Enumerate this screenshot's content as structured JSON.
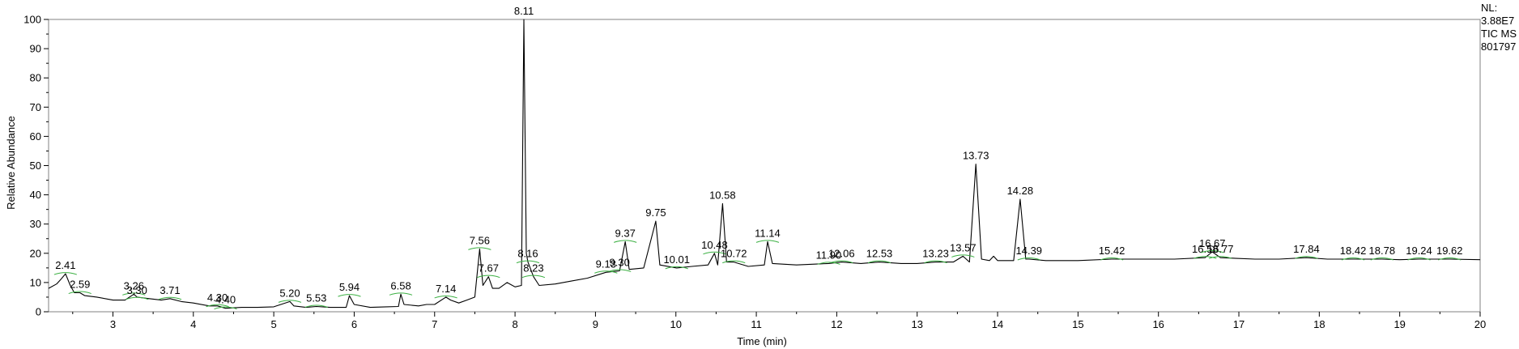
{
  "chart_data": {
    "type": "line",
    "xlabel": "Time (min)",
    "ylabel": "Relative Abundance",
    "xlim": [
      2.2,
      20
    ],
    "ylim": [
      0,
      100
    ],
    "xticks": [
      "3",
      "4",
      "5",
      "6",
      "7",
      "8",
      "9",
      "10",
      "11",
      "12",
      "13",
      "14",
      "15",
      "16",
      "17",
      "18",
      "19",
      "20"
    ],
    "yticks": [
      "0",
      "10",
      "20",
      "30",
      "40",
      "50",
      "60",
      "70",
      "80",
      "90",
      "100"
    ],
    "grid": false,
    "legend": "none",
    "line_color": "#000000",
    "baseline_marker_color": "#3cb043",
    "side_info": [
      "NL:",
      "3.88E7",
      "TIC  MS",
      "801797"
    ],
    "peak_labels": [
      {
        "label": "2.41",
        "x": 2.41,
        "y": 13
      },
      {
        "label": "2.59",
        "x": 2.59,
        "y": 6.5
      },
      {
        "label": "3.26",
        "x": 3.26,
        "y": 6
      },
      {
        "label": "3.30",
        "x": 3.3,
        "y": 4.5
      },
      {
        "label": "3.71",
        "x": 3.71,
        "y": 4.5
      },
      {
        "label": "4.30",
        "x": 4.3,
        "y": 2
      },
      {
        "label": "4.40",
        "x": 4.4,
        "y": 1.2
      },
      {
        "label": "5.20",
        "x": 5.2,
        "y": 3.5
      },
      {
        "label": "5.53",
        "x": 5.53,
        "y": 1.8
      },
      {
        "label": "5.94",
        "x": 5.94,
        "y": 5.5
      },
      {
        "label": "6.58",
        "x": 6.58,
        "y": 6
      },
      {
        "label": "7.14",
        "x": 7.14,
        "y": 5
      },
      {
        "label": "7.56",
        "x": 7.56,
        "y": 21.5
      },
      {
        "label": "7.67",
        "x": 7.67,
        "y": 12
      },
      {
        "label": "8.11",
        "x": 8.11,
        "y": 100
      },
      {
        "label": "8.16",
        "x": 8.16,
        "y": 17
      },
      {
        "label": "8.23",
        "x": 8.23,
        "y": 12
      },
      {
        "label": "9.13",
        "x": 9.13,
        "y": 13.5
      },
      {
        "label": "9.30",
        "x": 9.3,
        "y": 14
      },
      {
        "label": "9.37",
        "x": 9.37,
        "y": 24
      },
      {
        "label": "9.75",
        "x": 9.75,
        "y": 31
      },
      {
        "label": "10.01",
        "x": 10.01,
        "y": 15
      },
      {
        "label": "10.48",
        "x": 10.48,
        "y": 20
      },
      {
        "label": "10.58",
        "x": 10.58,
        "y": 37
      },
      {
        "label": "10.72",
        "x": 10.72,
        "y": 17
      },
      {
        "label": "11.14",
        "x": 11.14,
        "y": 24
      },
      {
        "label": "11.90",
        "x": 11.9,
        "y": 16.5
      },
      {
        "label": "12.06",
        "x": 12.06,
        "y": 17
      },
      {
        "label": "12.53",
        "x": 12.53,
        "y": 17
      },
      {
        "label": "13.23",
        "x": 13.23,
        "y": 17
      },
      {
        "label": "13.57",
        "x": 13.57,
        "y": 19
      },
      {
        "label": "13.73",
        "x": 13.73,
        "y": 50.5
      },
      {
        "label": "14.28",
        "x": 14.28,
        "y": 38.5
      },
      {
        "label": "14.39",
        "x": 14.39,
        "y": 18
      },
      {
        "label": "15.42",
        "x": 15.42,
        "y": 18
      },
      {
        "label": "16.58",
        "x": 16.58,
        "y": 18.5
      },
      {
        "label": "16.67",
        "x": 16.67,
        "y": 20.5
      },
      {
        "label": "16.77",
        "x": 16.77,
        "y": 18.5
      },
      {
        "label": "17.84",
        "x": 17.84,
        "y": 18.5
      },
      {
        "label": "18.42",
        "x": 18.42,
        "y": 18
      },
      {
        "label": "18.78",
        "x": 18.78,
        "y": 18
      },
      {
        "label": "19.24",
        "x": 19.24,
        "y": 18
      },
      {
        "label": "19.62",
        "x": 19.62,
        "y": 18
      }
    ],
    "baseline_trace": [
      [
        2.2,
        8
      ],
      [
        2.3,
        9.5
      ],
      [
        2.35,
        11
      ],
      [
        2.41,
        13
      ],
      [
        2.47,
        9
      ],
      [
        2.52,
        6.5
      ],
      [
        2.59,
        6.5
      ],
      [
        2.65,
        5.5
      ],
      [
        2.8,
        5
      ],
      [
        3.0,
        4
      ],
      [
        3.15,
        4
      ],
      [
        3.26,
        6
      ],
      [
        3.3,
        5
      ],
      [
        3.45,
        4.5
      ],
      [
        3.6,
        4
      ],
      [
        3.71,
        4.5
      ],
      [
        3.85,
        3.5
      ],
      [
        4.0,
        3
      ],
      [
        4.2,
        2
      ],
      [
        4.3,
        2
      ],
      [
        4.4,
        1.2
      ],
      [
        4.6,
        1.5
      ],
      [
        4.8,
        1.5
      ],
      [
        5.0,
        1.7
      ],
      [
        5.2,
        3.5
      ],
      [
        5.25,
        2
      ],
      [
        5.4,
        1.5
      ],
      [
        5.53,
        1.8
      ],
      [
        5.7,
        1.5
      ],
      [
        5.9,
        1.5
      ],
      [
        5.94,
        5.5
      ],
      [
        6.0,
        2.5
      ],
      [
        6.2,
        1.5
      ],
      [
        6.4,
        1.7
      ],
      [
        6.55,
        1.8
      ],
      [
        6.58,
        6
      ],
      [
        6.62,
        2.5
      ],
      [
        6.8,
        2
      ],
      [
        6.9,
        2.5
      ],
      [
        7.0,
        2.5
      ],
      [
        7.14,
        5
      ],
      [
        7.2,
        4
      ],
      [
        7.3,
        3
      ],
      [
        7.4,
        4
      ],
      [
        7.5,
        5
      ],
      [
        7.56,
        21.5
      ],
      [
        7.6,
        9
      ],
      [
        7.67,
        12
      ],
      [
        7.72,
        8
      ],
      [
        7.8,
        8
      ],
      [
        7.9,
        10
      ],
      [
        8.0,
        8.5
      ],
      [
        8.08,
        9
      ],
      [
        8.11,
        100
      ],
      [
        8.14,
        20
      ],
      [
        8.16,
        17
      ],
      [
        8.23,
        12
      ],
      [
        8.3,
        9
      ],
      [
        8.5,
        9.5
      ],
      [
        8.7,
        10.5
      ],
      [
        8.9,
        11.5
      ],
      [
        9.13,
        13.5
      ],
      [
        9.3,
        14
      ],
      [
        9.37,
        24
      ],
      [
        9.42,
        14.5
      ],
      [
        9.6,
        15
      ],
      [
        9.75,
        31
      ],
      [
        9.8,
        16
      ],
      [
        10.01,
        15
      ],
      [
        10.2,
        15.5
      ],
      [
        10.4,
        16
      ],
      [
        10.48,
        20
      ],
      [
        10.52,
        16
      ],
      [
        10.58,
        37
      ],
      [
        10.63,
        17
      ],
      [
        10.72,
        17
      ],
      [
        10.9,
        15.5
      ],
      [
        11.1,
        16
      ],
      [
        11.14,
        24
      ],
      [
        11.2,
        16.5
      ],
      [
        11.5,
        16
      ],
      [
        11.9,
        16.5
      ],
      [
        12.06,
        17
      ],
      [
        12.3,
        16.5
      ],
      [
        12.53,
        17
      ],
      [
        12.8,
        16.5
      ],
      [
        13.0,
        16.5
      ],
      [
        13.23,
        17
      ],
      [
        13.45,
        17
      ],
      [
        13.57,
        19
      ],
      [
        13.65,
        17
      ],
      [
        13.73,
        50.5
      ],
      [
        13.8,
        18
      ],
      [
        13.9,
        17.5
      ],
      [
        13.95,
        19
      ],
      [
        14.0,
        17.5
      ],
      [
        14.2,
        17.5
      ],
      [
        14.28,
        38.5
      ],
      [
        14.35,
        18
      ],
      [
        14.39,
        18
      ],
      [
        14.6,
        17.5
      ],
      [
        15.0,
        17.5
      ],
      [
        15.42,
        18
      ],
      [
        15.8,
        18
      ],
      [
        16.2,
        18
      ],
      [
        16.58,
        18.5
      ],
      [
        16.67,
        20.5
      ],
      [
        16.77,
        18.5
      ],
      [
        17.2,
        18
      ],
      [
        17.5,
        18
      ],
      [
        17.84,
        18.5
      ],
      [
        18.1,
        18
      ],
      [
        18.42,
        18
      ],
      [
        18.78,
        18
      ],
      [
        19.0,
        17.8
      ],
      [
        19.24,
        18
      ],
      [
        19.62,
        18
      ],
      [
        20.0,
        17.8
      ]
    ]
  }
}
